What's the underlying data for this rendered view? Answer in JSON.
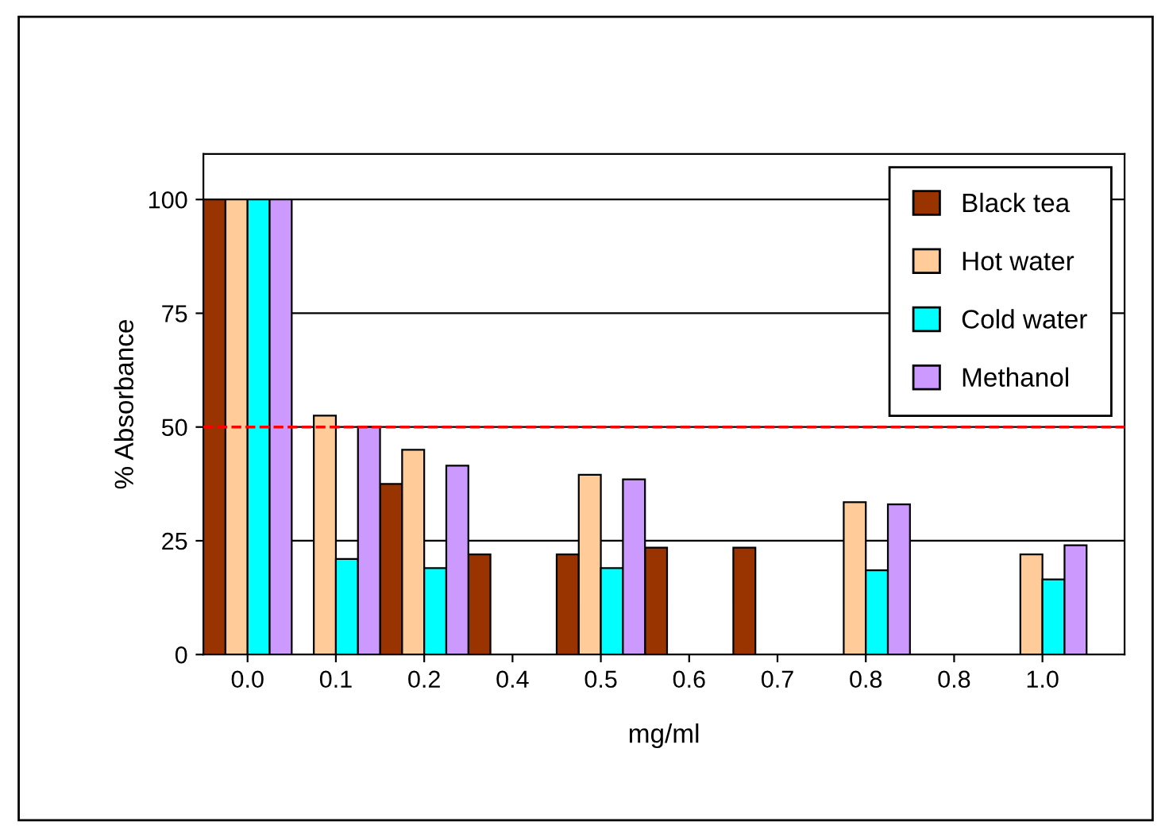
{
  "chart_data": {
    "type": "bar",
    "xlabel": "mg/ml",
    "ylabel": "% Absorbance",
    "categories": [
      "0.0",
      "0.1",
      "0.2",
      "0.4",
      "0.5",
      "0.6",
      "0.7",
      "0.8",
      "0.8",
      "1.0"
    ],
    "series": [
      {
        "name": "Black tea",
        "color": "#993300",
        "values": [
          100,
          null,
          37.5,
          22,
          22,
          23.5,
          23.5,
          null,
          null,
          null
        ]
      },
      {
        "name": "Hot water",
        "color": "#ffcc99",
        "values": [
          100,
          52.5,
          45,
          null,
          39.5,
          null,
          null,
          33.5,
          null,
          22
        ]
      },
      {
        "name": "Cold water",
        "color": "#00ffff",
        "values": [
          100,
          21,
          19,
          null,
          19,
          null,
          null,
          18.5,
          null,
          16.5
        ]
      },
      {
        "name": "Methanol",
        "color": "#cc99ff",
        "values": [
          100,
          50,
          41.5,
          null,
          38.5,
          null,
          null,
          33,
          null,
          24
        ]
      }
    ],
    "ylim": [
      0,
      110
    ],
    "yticks": [
      0,
      25,
      50,
      75,
      100
    ],
    "grid": "y",
    "legend": "top right",
    "ref_lines": [
      {
        "axis": "y",
        "value": 50,
        "color": "#ff0000",
        "line_style": "dashed"
      }
    ]
  }
}
